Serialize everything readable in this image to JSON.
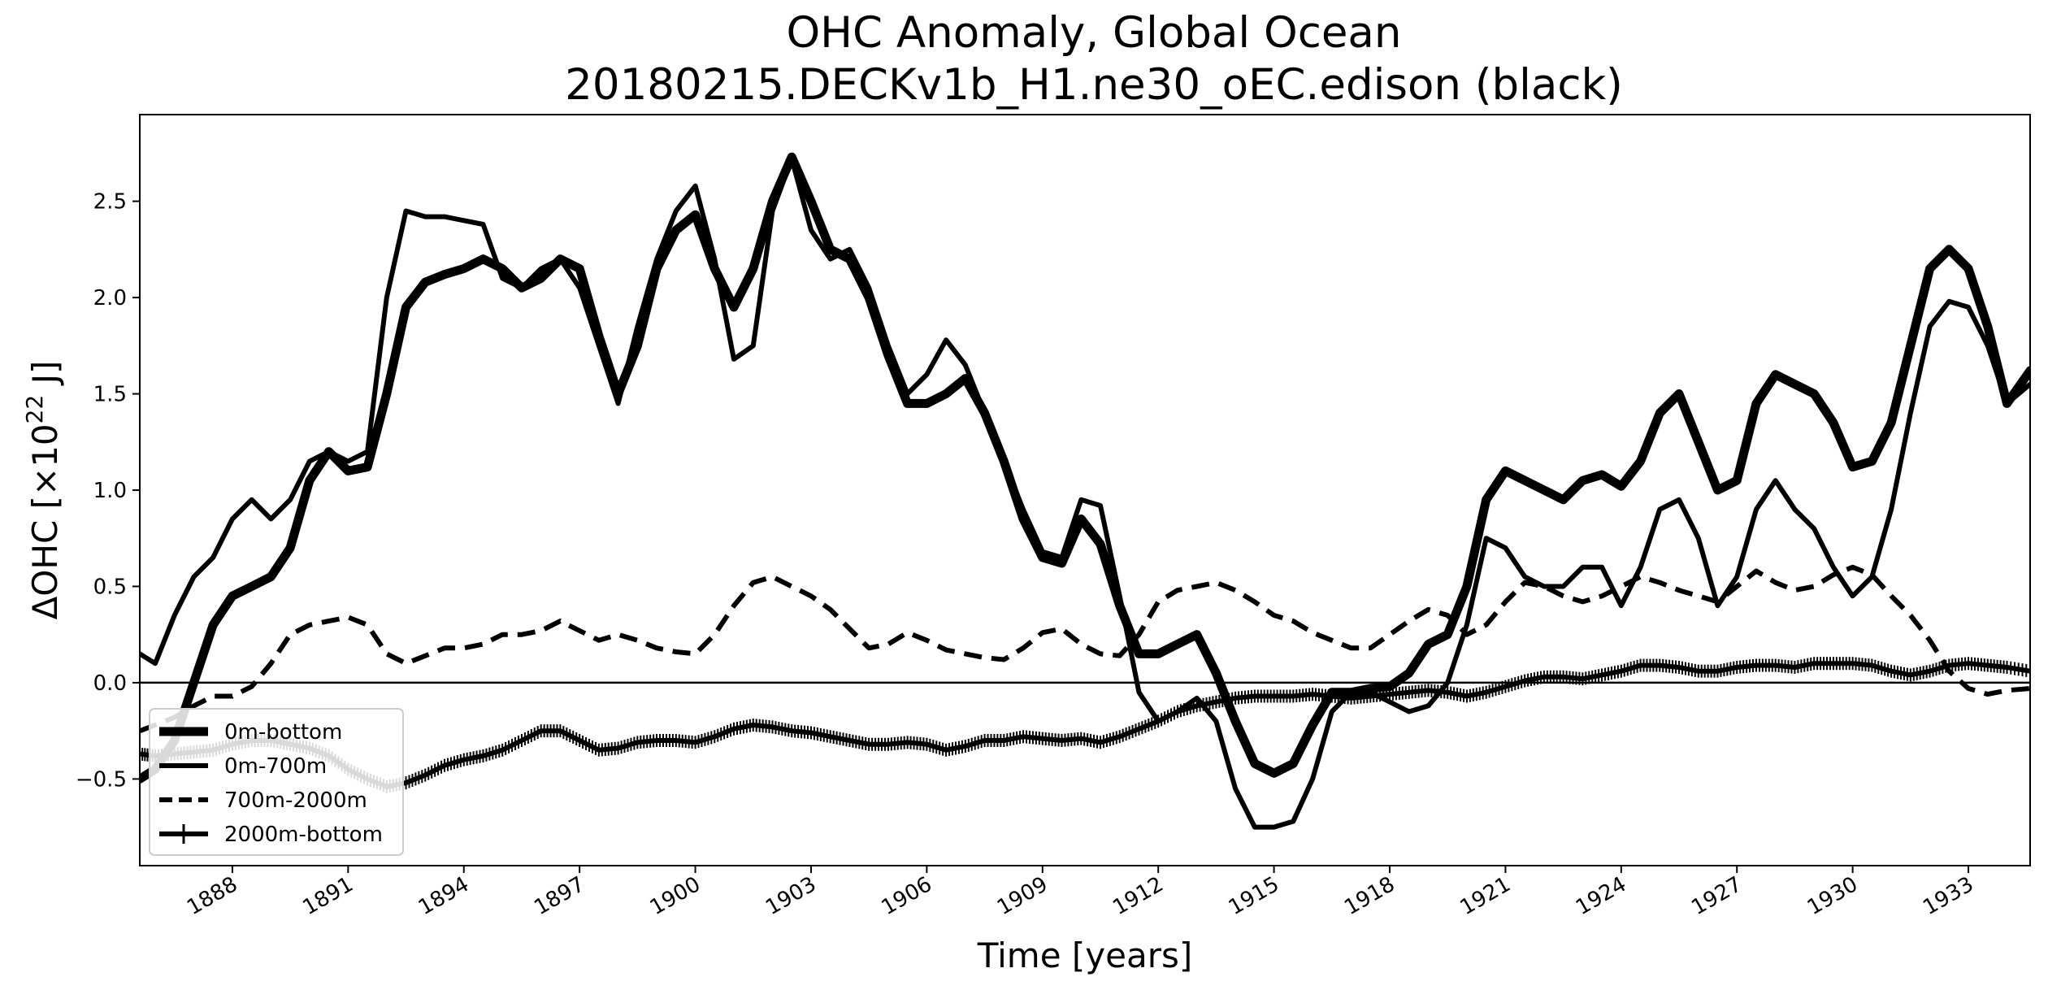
{
  "chart_data": {
    "type": "line",
    "title": "OHC Anomaly, Global Ocean",
    "subtitle": "20180215.DECKv1b_H1.ne30_oEC.edison (black)",
    "xlabel": "Time [years]",
    "ylabel_prefix": "ΔOHC [×10",
    "ylabel_exponent": "22",
    "ylabel_suffix": " J]",
    "xlim": [
      1885.6,
      1934.6
    ],
    "ylim": [
      -0.95,
      2.95
    ],
    "x_ticks": [
      1888,
      1891,
      1894,
      1897,
      1900,
      1903,
      1906,
      1909,
      1912,
      1915,
      1918,
      1921,
      1924,
      1927,
      1930,
      1933
    ],
    "x_tick_labels": [
      "1888",
      "1891",
      "1894",
      "1897",
      "1900",
      "1903",
      "1906",
      "1909",
      "1912",
      "1915",
      "1918",
      "1921",
      "1924",
      "1927",
      "1930",
      "1933"
    ],
    "y_ticks": [
      -0.5,
      0.0,
      0.5,
      1.0,
      1.5,
      2.0,
      2.5
    ],
    "y_tick_labels": [
      "−0.5",
      "0.0",
      "0.5",
      "1.0",
      "1.5",
      "2.0",
      "2.5"
    ],
    "zero_line": true,
    "grid": false,
    "legend_position": "lower-left",
    "series": [
      {
        "name": "0m-bottom",
        "style": "thick",
        "color": "#000000",
        "x": [
          1885.6,
          1886.0,
          1886.5,
          1887.0,
          1887.5,
          1888.0,
          1888.5,
          1889.0,
          1889.5,
          1890.0,
          1890.5,
          1891.0,
          1891.5,
          1892.0,
          1892.5,
          1893.0,
          1893.5,
          1894.0,
          1894.5,
          1895.0,
          1895.5,
          1896.0,
          1896.5,
          1897.0,
          1897.5,
          1898.0,
          1898.5,
          1899.0,
          1899.5,
          1900.0,
          1900.5,
          1901.0,
          1901.5,
          1902.0,
          1902.5,
          1903.0,
          1903.5,
          1904.0,
          1904.5,
          1905.0,
          1905.5,
          1906.0,
          1906.5,
          1907.0,
          1907.5,
          1908.0,
          1908.5,
          1909.0,
          1909.5,
          1910.0,
          1910.5,
          1911.0,
          1911.5,
          1912.0,
          1912.5,
          1913.0,
          1913.5,
          1914.0,
          1914.5,
          1915.0,
          1915.5,
          1916.0,
          1916.5,
          1917.0,
          1917.5,
          1918.0,
          1918.5,
          1919.0,
          1919.5,
          1920.0,
          1920.5,
          1921.0,
          1921.5,
          1922.0,
          1922.5,
          1923.0,
          1923.5,
          1924.0,
          1924.5,
          1925.0,
          1925.5,
          1926.0,
          1926.5,
          1927.0,
          1927.5,
          1928.0,
          1928.5,
          1929.0,
          1929.5,
          1930.0,
          1930.5,
          1931.0,
          1931.5,
          1932.0,
          1932.5,
          1933.0,
          1933.5,
          1934.0,
          1934.6
        ],
        "values": [
          -0.5,
          -0.45,
          -0.3,
          0.0,
          0.3,
          0.45,
          0.5,
          0.55,
          0.7,
          1.05,
          1.2,
          1.1,
          1.12,
          1.5,
          1.95,
          2.08,
          2.12,
          2.15,
          2.2,
          2.15,
          2.05,
          2.1,
          2.2,
          2.15,
          1.8,
          1.5,
          1.75,
          2.15,
          2.35,
          2.43,
          2.15,
          1.95,
          2.15,
          2.5,
          2.73,
          2.5,
          2.25,
          2.2,
          2.0,
          1.7,
          1.45,
          1.45,
          1.5,
          1.58,
          1.4,
          1.15,
          0.85,
          0.65,
          0.62,
          0.85,
          0.72,
          0.4,
          0.15,
          0.15,
          0.2,
          0.25,
          0.05,
          -0.2,
          -0.42,
          -0.47,
          -0.42,
          -0.22,
          -0.05,
          -0.05,
          -0.03,
          -0.02,
          0.05,
          0.2,
          0.25,
          0.5,
          0.95,
          1.1,
          1.05,
          1.0,
          0.95,
          1.05,
          1.08,
          1.02,
          1.15,
          1.4,
          1.5,
          1.25,
          1.0,
          1.05,
          1.45,
          1.6,
          1.55,
          1.5,
          1.35,
          1.12,
          1.15,
          1.35,
          1.75,
          2.15,
          2.25,
          2.15,
          1.85,
          1.45,
          1.62
        ]
      },
      {
        "name": "0m-700m",
        "style": "solid",
        "color": "#000000",
        "x": [
          1885.6,
          1886.0,
          1886.5,
          1887.0,
          1887.5,
          1888.0,
          1888.5,
          1889.0,
          1889.5,
          1890.0,
          1890.5,
          1891.0,
          1891.5,
          1892.0,
          1892.5,
          1893.0,
          1893.5,
          1894.0,
          1894.5,
          1895.0,
          1895.5,
          1896.0,
          1896.5,
          1897.0,
          1897.5,
          1898.0,
          1898.5,
          1899.0,
          1899.5,
          1900.0,
          1900.5,
          1901.0,
          1901.5,
          1902.0,
          1902.5,
          1903.0,
          1903.5,
          1904.0,
          1904.5,
          1905.0,
          1905.5,
          1906.0,
          1906.5,
          1907.0,
          1907.5,
          1908.0,
          1908.5,
          1909.0,
          1909.5,
          1910.0,
          1910.5,
          1911.0,
          1911.5,
          1912.0,
          1912.5,
          1913.0,
          1913.5,
          1914.0,
          1914.5,
          1915.0,
          1915.5,
          1916.0,
          1916.5,
          1917.0,
          1917.5,
          1918.0,
          1918.5,
          1919.0,
          1919.5,
          1920.0,
          1920.5,
          1921.0,
          1921.5,
          1922.0,
          1922.5,
          1923.0,
          1923.5,
          1924.0,
          1924.5,
          1925.0,
          1925.5,
          1926.0,
          1926.5,
          1927.0,
          1927.5,
          1928.0,
          1928.5,
          1929.0,
          1929.5,
          1930.0,
          1930.5,
          1931.0,
          1931.5,
          1932.0,
          1932.5,
          1933.0,
          1933.5,
          1934.0,
          1934.6
        ],
        "values": [
          0.15,
          0.1,
          0.35,
          0.55,
          0.65,
          0.85,
          0.95,
          0.85,
          0.95,
          1.15,
          1.2,
          1.15,
          1.2,
          2.0,
          2.45,
          2.42,
          2.42,
          2.4,
          2.38,
          2.1,
          2.05,
          2.15,
          2.2,
          2.05,
          1.75,
          1.45,
          1.85,
          2.2,
          2.45,
          2.58,
          2.2,
          1.68,
          1.75,
          2.45,
          2.72,
          2.35,
          2.2,
          2.25,
          2.05,
          1.75,
          1.5,
          1.6,
          1.78,
          1.65,
          1.4,
          1.15,
          0.9,
          0.68,
          0.65,
          0.95,
          0.92,
          0.45,
          -0.05,
          -0.2,
          -0.15,
          -0.08,
          -0.2,
          -0.55,
          -0.75,
          -0.75,
          -0.72,
          -0.5,
          -0.15,
          -0.05,
          -0.05,
          -0.1,
          -0.15,
          -0.12,
          0.0,
          0.3,
          0.75,
          0.7,
          0.55,
          0.5,
          0.5,
          0.6,
          0.6,
          0.4,
          0.6,
          0.9,
          0.95,
          0.75,
          0.4,
          0.55,
          0.9,
          1.05,
          0.9,
          0.8,
          0.6,
          0.45,
          0.55,
          0.9,
          1.4,
          1.85,
          1.98,
          1.95,
          1.75,
          1.45,
          1.55
        ]
      },
      {
        "name": "700m-2000m",
        "style": "dashed",
        "color": "#000000",
        "x": [
          1885.6,
          1886.0,
          1886.5,
          1887.0,
          1887.5,
          1888.0,
          1888.5,
          1889.0,
          1889.5,
          1890.0,
          1890.5,
          1891.0,
          1891.5,
          1892.0,
          1892.5,
          1893.0,
          1893.5,
          1894.0,
          1894.5,
          1895.0,
          1895.5,
          1896.0,
          1896.5,
          1897.0,
          1897.5,
          1898.0,
          1898.5,
          1899.0,
          1899.5,
          1900.0,
          1900.5,
          1901.0,
          1901.5,
          1902.0,
          1902.5,
          1903.0,
          1903.5,
          1904.0,
          1904.5,
          1905.0,
          1905.5,
          1906.0,
          1906.5,
          1907.0,
          1907.5,
          1908.0,
          1908.5,
          1909.0,
          1909.5,
          1910.0,
          1910.5,
          1911.0,
          1911.5,
          1912.0,
          1912.5,
          1913.0,
          1913.5,
          1914.0,
          1914.5,
          1915.0,
          1915.5,
          1916.0,
          1916.5,
          1917.0,
          1917.5,
          1918.0,
          1918.5,
          1919.0,
          1919.5,
          1920.0,
          1920.5,
          1921.0,
          1921.5,
          1922.0,
          1922.5,
          1923.0,
          1923.5,
          1924.0,
          1924.5,
          1925.0,
          1925.5,
          1926.0,
          1926.5,
          1927.0,
          1927.5,
          1928.0,
          1928.5,
          1929.0,
          1929.5,
          1930.0,
          1930.5,
          1931.0,
          1931.5,
          1932.0,
          1932.5,
          1933.0,
          1933.5,
          1934.0,
          1934.6
        ],
        "values": [
          -0.25,
          -0.22,
          -0.18,
          -0.12,
          -0.07,
          -0.07,
          -0.02,
          0.1,
          0.25,
          0.3,
          0.32,
          0.34,
          0.3,
          0.15,
          0.1,
          0.14,
          0.18,
          0.18,
          0.2,
          0.25,
          0.25,
          0.27,
          0.32,
          0.27,
          0.22,
          0.25,
          0.22,
          0.18,
          0.16,
          0.15,
          0.25,
          0.4,
          0.52,
          0.55,
          0.5,
          0.45,
          0.38,
          0.28,
          0.18,
          0.2,
          0.26,
          0.22,
          0.17,
          0.15,
          0.13,
          0.12,
          0.18,
          0.26,
          0.28,
          0.2,
          0.15,
          0.14,
          0.25,
          0.42,
          0.48,
          0.5,
          0.52,
          0.48,
          0.42,
          0.35,
          0.32,
          0.26,
          0.22,
          0.18,
          0.18,
          0.25,
          0.32,
          0.38,
          0.35,
          0.25,
          0.3,
          0.42,
          0.52,
          0.5,
          0.45,
          0.42,
          0.45,
          0.5,
          0.55,
          0.52,
          0.48,
          0.45,
          0.42,
          0.5,
          0.58,
          0.52,
          0.48,
          0.5,
          0.56,
          0.6,
          0.56,
          0.45,
          0.35,
          0.22,
          0.06,
          -0.03,
          -0.06,
          -0.04,
          -0.03
        ]
      },
      {
        "name": "2000m-bottom",
        "style": "marker",
        "color": "#000000",
        "x": [
          1885.6,
          1886.0,
          1886.5,
          1887.0,
          1887.5,
          1888.0,
          1888.5,
          1889.0,
          1889.5,
          1890.0,
          1890.5,
          1891.0,
          1891.5,
          1892.0,
          1892.5,
          1893.0,
          1893.5,
          1894.0,
          1894.5,
          1895.0,
          1895.5,
          1896.0,
          1896.5,
          1897.0,
          1897.5,
          1898.0,
          1898.5,
          1899.0,
          1899.5,
          1900.0,
          1900.5,
          1901.0,
          1901.5,
          1902.0,
          1902.5,
          1903.0,
          1903.5,
          1904.0,
          1904.5,
          1905.0,
          1905.5,
          1906.0,
          1906.5,
          1907.0,
          1907.5,
          1908.0,
          1908.5,
          1909.0,
          1909.5,
          1910.0,
          1910.5,
          1911.0,
          1911.5,
          1912.0,
          1912.5,
          1913.0,
          1913.5,
          1914.0,
          1914.5,
          1915.0,
          1915.5,
          1916.0,
          1916.5,
          1917.0,
          1917.5,
          1918.0,
          1918.5,
          1919.0,
          1919.5,
          1920.0,
          1920.5,
          1921.0,
          1921.5,
          1922.0,
          1922.5,
          1923.0,
          1923.5,
          1924.0,
          1924.5,
          1925.0,
          1925.5,
          1926.0,
          1926.5,
          1927.0,
          1927.5,
          1928.0,
          1928.5,
          1929.0,
          1929.5,
          1930.0,
          1930.5,
          1931.0,
          1931.5,
          1932.0,
          1932.5,
          1933.0,
          1933.5,
          1934.0,
          1934.6
        ],
        "values": [
          -0.37,
          -0.38,
          -0.37,
          -0.36,
          -0.35,
          -0.32,
          -0.3,
          -0.3,
          -0.32,
          -0.34,
          -0.38,
          -0.45,
          -0.5,
          -0.54,
          -0.52,
          -0.48,
          -0.43,
          -0.4,
          -0.38,
          -0.35,
          -0.3,
          -0.25,
          -0.25,
          -0.3,
          -0.35,
          -0.34,
          -0.31,
          -0.3,
          -0.3,
          -0.31,
          -0.28,
          -0.24,
          -0.22,
          -0.23,
          -0.25,
          -0.26,
          -0.28,
          -0.3,
          -0.32,
          -0.32,
          -0.31,
          -0.32,
          -0.35,
          -0.33,
          -0.3,
          -0.3,
          -0.28,
          -0.29,
          -0.3,
          -0.29,
          -0.31,
          -0.28,
          -0.24,
          -0.2,
          -0.15,
          -0.12,
          -0.1,
          -0.08,
          -0.07,
          -0.07,
          -0.07,
          -0.06,
          -0.07,
          -0.08,
          -0.07,
          -0.06,
          -0.05,
          -0.04,
          -0.05,
          -0.07,
          -0.05,
          -0.02,
          0.01,
          0.03,
          0.03,
          0.02,
          0.04,
          0.06,
          0.09,
          0.09,
          0.08,
          0.06,
          0.06,
          0.08,
          0.09,
          0.09,
          0.08,
          0.1,
          0.1,
          0.1,
          0.09,
          0.06,
          0.04,
          0.06,
          0.09,
          0.1,
          0.09,
          0.08,
          0.06
        ]
      }
    ]
  }
}
